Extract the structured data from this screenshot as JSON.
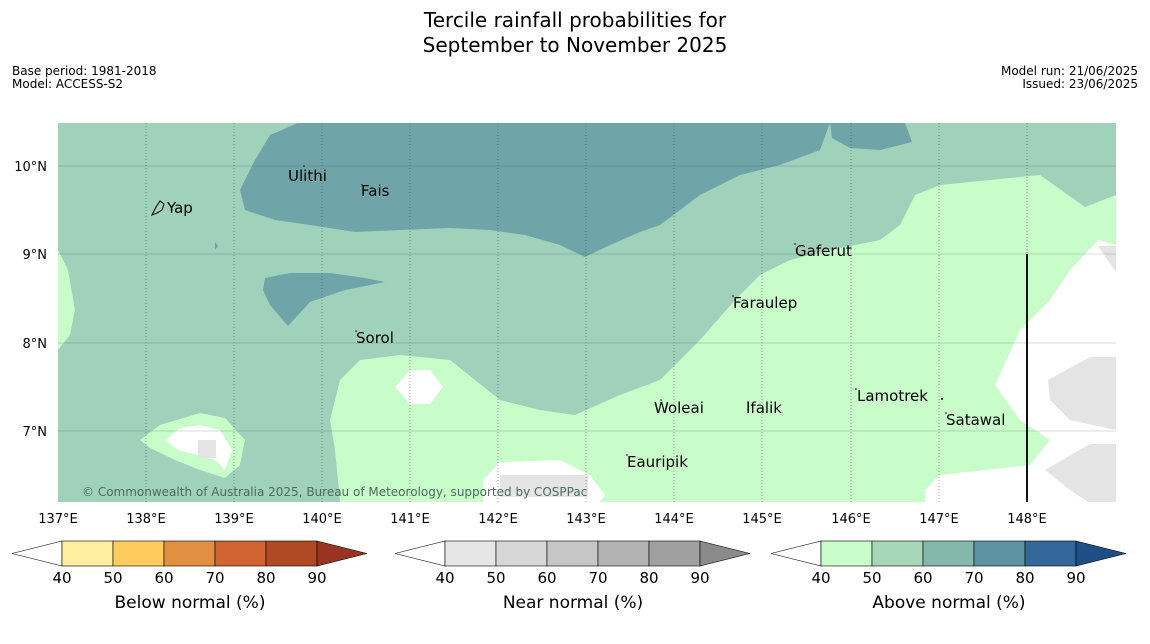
{
  "title": {
    "line1": "Tercile rainfall probabilities for",
    "line2": "September to November 2025"
  },
  "meta_left": {
    "base_period": "Base period: 1981-2018",
    "model": "Model: ACCESS-S2"
  },
  "meta_right": {
    "model_run": "Model run: 21/06/2025",
    "issued": "Issued: 23/06/2025"
  },
  "map": {
    "lat_ticks": [
      "10°N",
      "9°N",
      "8°N",
      "7°N"
    ],
    "lon_ticks": [
      "137°E",
      "138°E",
      "139°E",
      "140°E",
      "141°E",
      "142°E",
      "143°E",
      "144°E",
      "145°E",
      "146°E",
      "147°E",
      "148°E"
    ],
    "places": {
      "ulithi": "Ulithi",
      "fais": "Fais",
      "yap": "Yap",
      "gaferut": "Gaferut",
      "faraulep": "Faraulep",
      "sorol": "Sorol",
      "woleai": "Woleai",
      "ifalik": "Ifalik",
      "lamotrek": "Lamotrek",
      "satawal": "Satawal",
      "eauripik": "Eauripik"
    },
    "copyright": "© Commonwealth of Australia 2025, Bureau of Meteorology, supported by COSPPac",
    "colors": {
      "above_50_60": "#9fd1bb",
      "above_60_70": "#6fa5a8",
      "above_40_50": "#c8fcc9",
      "near_40_50": "#e4e4e4",
      "near_50_60": "#d5d5d5"
    }
  },
  "colorbars": [
    {
      "label": "Below normal (%)",
      "ticks": [
        "40",
        "50",
        "60",
        "70",
        "80",
        "90"
      ],
      "colors": [
        "#ffffff",
        "#ffeda0",
        "#fecc5c",
        "#e09040",
        "#cf6430",
        "#b04a25",
        "#9a3422"
      ]
    },
    {
      "label": "Near normal (%)",
      "ticks": [
        "40",
        "50",
        "60",
        "70",
        "80",
        "90"
      ],
      "colors": [
        "#ffffff",
        "#e6e6e6",
        "#d7d7d7",
        "#c6c6c6",
        "#b3b3b3",
        "#a0a0a0",
        "#8a8a8a"
      ]
    },
    {
      "label": "Above normal (%)",
      "ticks": [
        "40",
        "50",
        "60",
        "70",
        "80",
        "90"
      ],
      "colors": [
        "#ffffff",
        "#c8fcc9",
        "#a6d7b6",
        "#84b8aa",
        "#5b93a0",
        "#336699",
        "#1d4e86"
      ]
    }
  ]
}
